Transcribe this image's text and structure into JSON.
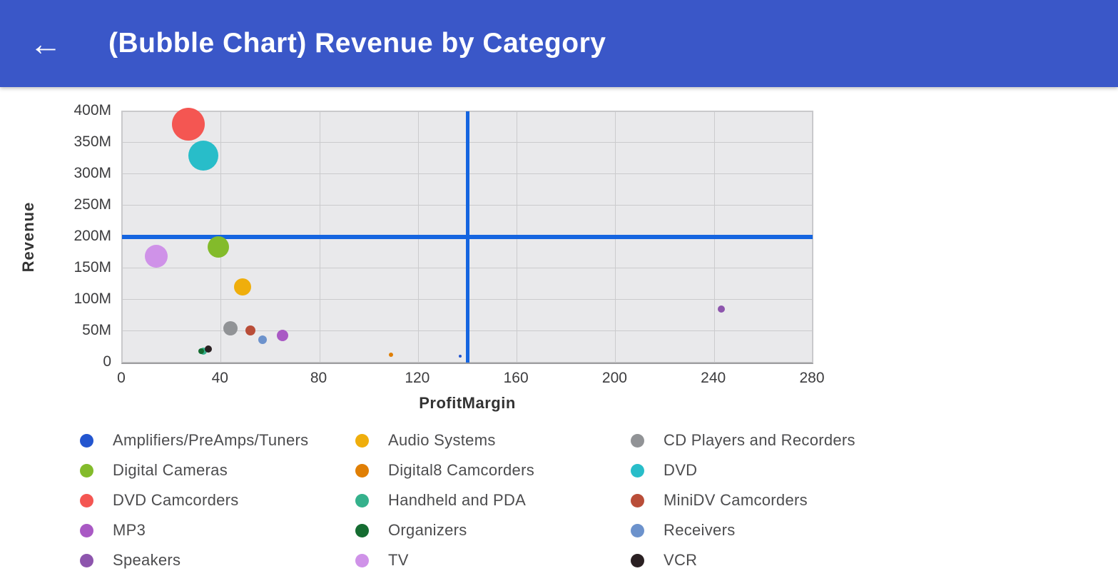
{
  "app_bar": {
    "title": "(Bubble Chart) Revenue by Category",
    "back_button": "←",
    "background_color": "#3a57c8"
  },
  "chart_data": {
    "type": "scatter",
    "subtype": "bubble",
    "title": "(Bubble Chart) Revenue by Category",
    "xlabel": "ProfitMargin",
    "ylabel": "Revenue",
    "xlim": [
      0,
      280
    ],
    "ylim_millions": [
      0,
      400
    ],
    "x_ticks": [
      0,
      40,
      80,
      120,
      160,
      200,
      240,
      280
    ],
    "y_ticks_millions": [
      0,
      50,
      100,
      150,
      200,
      250,
      300,
      350,
      400
    ],
    "y_tick_labels": [
      "0",
      "50M",
      "100M",
      "150M",
      "200M",
      "250M",
      "300M",
      "350M",
      "400M"
    ],
    "grid": true,
    "legend_position": "bottom",
    "plot_background": "#e9e9eb",
    "grid_color": "#cbcbcd",
    "reference_lines": {
      "x": 140,
      "y_millions": 200,
      "color": "#1565e0"
    },
    "series": [
      {
        "name": "Amplifiers/PreAmps/Tuners",
        "color": "#2355cf",
        "x": 137,
        "y_millions": 10,
        "radius_px": 2
      },
      {
        "name": "Audio Systems",
        "color": "#efae0c",
        "x": 49,
        "y_millions": 121,
        "radius_px": 12
      },
      {
        "name": "CD Players and Recorders",
        "color": "#919396",
        "x": 44,
        "y_millions": 54,
        "radius_px": 10
      },
      {
        "name": "Digital Cameras",
        "color": "#83bb2b",
        "x": 39,
        "y_millions": 184,
        "radius_px": 15
      },
      {
        "name": "Digital8 Camcorders",
        "color": "#e07f05",
        "x": 109,
        "y_millions": 13,
        "radius_px": 3
      },
      {
        "name": "DVD",
        "color": "#28bdc9",
        "x": 33,
        "y_millions": 329,
        "radius_px": 21
      },
      {
        "name": "DVD Camcorders",
        "color": "#f45652",
        "x": 27,
        "y_millions": 380,
        "radius_px": 23
      },
      {
        "name": "Handheld and PDA",
        "color": "#35b18c",
        "x": 33,
        "y_millions": 18,
        "radius_px": 5
      },
      {
        "name": "MiniDV Camcorders",
        "color": "#b94d38",
        "x": 52,
        "y_millions": 51,
        "radius_px": 7
      },
      {
        "name": "MP3",
        "color": "#a959c4",
        "x": 65,
        "y_millions": 43,
        "radius_px": 8
      },
      {
        "name": "Organizers",
        "color": "#156c31",
        "x": 32,
        "y_millions": 18,
        "radius_px": 4
      },
      {
        "name": "Receivers",
        "color": "#6c92cc",
        "x": 57,
        "y_millions": 36,
        "radius_px": 6
      },
      {
        "name": "Speakers",
        "color": "#8d55ad",
        "x": 243,
        "y_millions": 85,
        "radius_px": 5
      },
      {
        "name": "TV",
        "color": "#cf92e8",
        "x": 14,
        "y_millions": 169,
        "radius_px": 16
      },
      {
        "name": "VCR",
        "color": "#2a2022",
        "x": 35,
        "y_millions": 22,
        "radius_px": 5
      }
    ]
  }
}
